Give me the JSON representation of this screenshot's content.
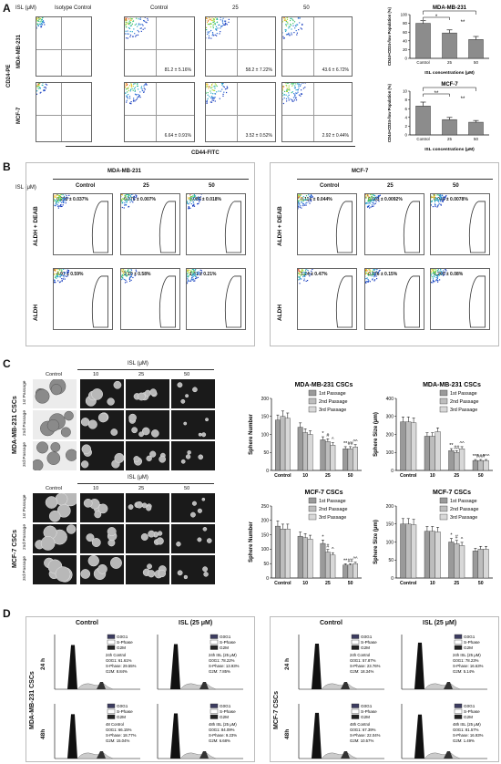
{
  "panelA": {
    "label": "A",
    "isl_header": "ISL (μM)",
    "col_labels": [
      "Isotype Control",
      "Control",
      "25",
      "50"
    ],
    "row_labels": [
      "MDA-MB-231",
      "MCF-7"
    ],
    "y_axis": "CD24-PE",
    "x_axis": "CD44-FITC",
    "percents": {
      "mda": [
        "",
        "81.2 ± 5.16%",
        "58.2 ± 7.22%",
        "43.6 ± 6.72%"
      ],
      "mcf": [
        "",
        "6.64 ± 0.91%",
        "3.52 ± 0.52%",
        "2.92 ± 0.44%"
      ]
    }
  },
  "panelB": {
    "label": "B",
    "isl_label": "ISL (μM)",
    "groups": [
      {
        "title": "MDA-MB-231",
        "cols": [
          "Control",
          "25",
          "50"
        ],
        "rows": [
          {
            "label": "ALDH + DEAB",
            "values": [
              "0.290 ± 0.037%",
              "0.075 ± 0.007%",
              "0.089 ± 0.018%"
            ]
          },
          {
            "label": "ALDH",
            "values": [
              "4.97 ± 0.59%",
              "2.10 ± 0.58%",
              "1.41 ± 0.21%"
            ]
          }
        ]
      },
      {
        "title": "MCF-7",
        "cols": [
          "Control",
          "25",
          "50"
        ],
        "rows": [
          {
            "label": "ALDH + DEAB",
            "values": [
              "0.116 ± 0.044%",
              "0.063 ± 0.0092%",
              "0.049 ± 0.0078%"
            ]
          },
          {
            "label": "ALDH",
            "values": [
              "1.24 ± 0.47%",
              "0.826 ± 0.15%",
              "0.260 ± 0.08%"
            ]
          }
        ]
      }
    ]
  },
  "panelC": {
    "label": "C",
    "top": {
      "isl_header": "ISL (μM)",
      "cols": [
        "Control",
        "10",
        "25",
        "50"
      ],
      "side_label": "MDA-MB-231 CSCs",
      "rows": [
        "1st Passage",
        "2nd Passage",
        "3rd Passage"
      ]
    },
    "bottom": {
      "isl_header": "ISL (μM)",
      "cols": [
        "Control",
        "10",
        "25",
        "50"
      ],
      "side_label": "MCF-7 CSCs",
      "rows": [
        "1st Passage",
        "2nd Passage",
        "3rd Passage"
      ]
    }
  },
  "panelD": {
    "label": "D",
    "groups": [
      {
        "side_label": "MDA-MB-231 CSCs",
        "col_titles": [
          "Control",
          "ISL (25 μM)"
        ],
        "row_labels": [
          "24 h",
          "48h"
        ],
        "legend": [
          "G0G1",
          "S-Phase",
          "G2M"
        ],
        "boxes": [
          [
            "24h Control",
            "G0G1: 61.61%",
            "S-Phase: 29.55%",
            "G2M: 8.84%"
          ],
          [
            "24h ISL (25 μM)",
            "G0G1: 78.22%",
            "S-Phase: 13.93%",
            "G2M: 7.85%"
          ],
          [
            "48 Control",
            "G0G1: 66.15%",
            "S-Phase: 18.77%",
            "G2M: 15.04%"
          ],
          [
            "48h ISL (25 μM)",
            "G0G1: 84.09%",
            "S-Phase: 9.23%",
            "G2M: 6.68%"
          ]
        ]
      },
      {
        "side_label": "MCF-7 CSCs",
        "col_titles": [
          "Control",
          "ISL (25 μM)"
        ],
        "row_labels": [
          "24 h",
          "48h"
        ],
        "legend": [
          "G0G1",
          "S-Phase",
          "G2M"
        ],
        "boxes": [
          [
            "24h Control",
            "G0G1: 57.87%",
            "S-Phase: 23.76%",
            "G2M: 18.34%"
          ],
          [
            "24h ISL (25 μM)",
            "G0G1: 78.23%",
            "S-Phase: 16.63%",
            "G2M: 5.14%"
          ],
          [
            "48h Control",
            "G0G1: 67.39%",
            "S-Phase: 22.04%",
            "G2M: 10.57%"
          ],
          [
            "48h ISL (25 μM)",
            "G0G1: 81.57%",
            "S-Phase: 16.93%",
            "G2M: 1.49%"
          ]
        ]
      }
    ]
  },
  "chart_data": [
    {
      "type": "bar",
      "title": "MDA-MB-231",
      "categories": [
        "Control",
        "25",
        "50"
      ],
      "values": [
        80,
        58,
        43
      ],
      "errors": [
        6,
        7,
        7
      ],
      "ylabel": "CD44+CD24-/low Population (%)",
      "xlabel": "ISL concentrations (μM)",
      "ylim": [
        0,
        100
      ],
      "yticks": [
        0,
        20,
        40,
        60,
        80,
        100
      ],
      "annotations": [
        "*",
        "**"
      ]
    },
    {
      "type": "bar",
      "title": "MCF-7",
      "categories": [
        "Control",
        "25",
        "50"
      ],
      "values": [
        6.6,
        3.5,
        2.9
      ],
      "errors": [
        0.9,
        0.5,
        0.4
      ],
      "ylabel": "CD44+CD24-/low Population (%)",
      "xlabel": "ISL concentrations (μM)",
      "ylim": [
        0,
        10
      ],
      "yticks": [
        0,
        2,
        4,
        6,
        8,
        10
      ],
      "annotations": [
        "**",
        "**"
      ]
    },
    {
      "type": "bar",
      "title": "MDA-MB-231 CSCs",
      "categories": [
        "Control",
        "10",
        "25",
        "50"
      ],
      "series": [
        {
          "name": "1st Passage",
          "values": [
            140,
            120,
            85,
            60
          ]
        },
        {
          "name": "2nd Passage",
          "values": [
            150,
            105,
            80,
            60
          ]
        },
        {
          "name": "3rd Passage",
          "values": [
            145,
            100,
            70,
            65
          ]
        }
      ],
      "ylabel": "Sphere Number",
      "ylim": [
        0,
        200
      ],
      "yticks": [
        0,
        50,
        100,
        150,
        200
      ],
      "annotations": [
        "*",
        "#",
        "^",
        "**",
        "##",
        "^^"
      ]
    },
    {
      "type": "bar",
      "title": "MDA-MB-231 CSCs",
      "categories": [
        "Control",
        "10",
        "25",
        "50"
      ],
      "series": [
        {
          "name": "1st Passage",
          "values": [
            270,
            190,
            110,
            55
          ]
        },
        {
          "name": "2nd Passage",
          "values": [
            270,
            190,
            100,
            55
          ]
        },
        {
          "name": "3rd Passage",
          "values": [
            265,
            215,
            120,
            55
          ]
        }
      ],
      "ylabel": "Sphere Size (μm)",
      "ylim": [
        0,
        400
      ],
      "yticks": [
        0,
        100,
        200,
        300,
        400
      ],
      "annotations": [
        "**",
        "##",
        "^^",
        "***",
        "###",
        "^^^"
      ]
    },
    {
      "type": "bar",
      "title": "MCF-7 CSCs",
      "categories": [
        "Control",
        "10",
        "25",
        "50"
      ],
      "series": [
        {
          "name": "1st Passage",
          "values": [
            180,
            145,
            120,
            45
          ]
        },
        {
          "name": "2nd Passage",
          "values": [
            170,
            140,
            90,
            45
          ]
        },
        {
          "name": "3rd Passage",
          "values": [
            170,
            135,
            80,
            50
          ]
        }
      ],
      "ylabel": "Sphere Number",
      "ylim": [
        0,
        250
      ],
      "yticks": [
        0,
        50,
        100,
        150,
        200,
        250
      ],
      "annotations": [
        "*",
        "#",
        "^",
        "**",
        "##",
        "^^"
      ]
    },
    {
      "type": "bar",
      "title": "MCF-7 CSCs",
      "categories": [
        "Control",
        "10",
        "25",
        "50"
      ],
      "series": [
        {
          "name": "1st Passage",
          "values": [
            150,
            130,
            100,
            75
          ]
        },
        {
          "name": "2nd Passage",
          "values": [
            150,
            130,
            95,
            80
          ]
        },
        {
          "name": "3rd Passage",
          "values": [
            148,
            128,
            90,
            80
          ]
        }
      ],
      "ylabel": "Sphere Size (μm)",
      "ylim": [
        0,
        200
      ],
      "yticks": [
        0,
        50,
        100,
        150,
        200
      ],
      "annotations": [
        "*",
        "#",
        "^"
      ]
    }
  ]
}
